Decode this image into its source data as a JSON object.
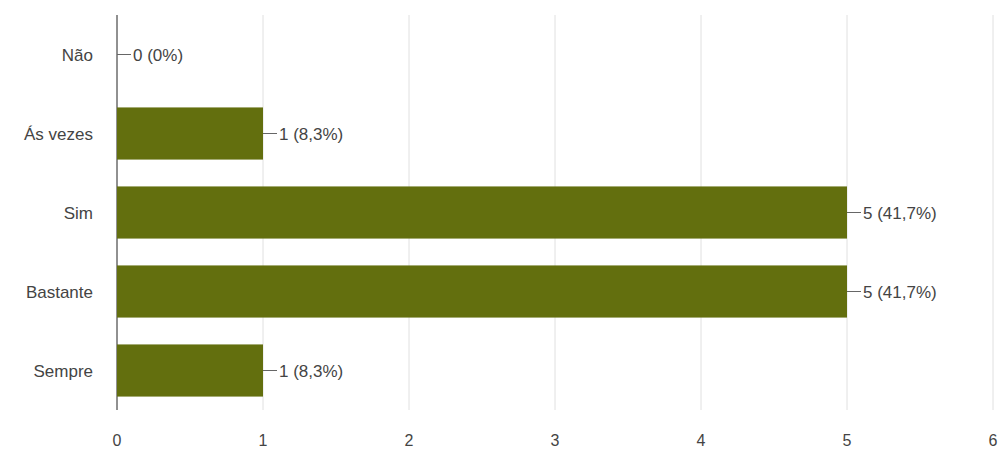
{
  "chart_data": {
    "type": "bar",
    "orientation": "horizontal",
    "categories": [
      "Não",
      "Ás vezes",
      "Sim",
      "Bastante",
      "Sempre"
    ],
    "values": [
      0,
      1,
      5,
      5,
      1
    ],
    "value_labels": [
      "0 (0%)",
      "1 (8,3%)",
      "5 (41,7%)",
      "5 (41,7%)",
      "1 (8,3%)"
    ],
    "color": "#636f0e",
    "xlim": [
      0,
      6
    ],
    "xticks": [
      0,
      1,
      2,
      3,
      4,
      5,
      6
    ],
    "grid": true,
    "data_labels": true
  }
}
